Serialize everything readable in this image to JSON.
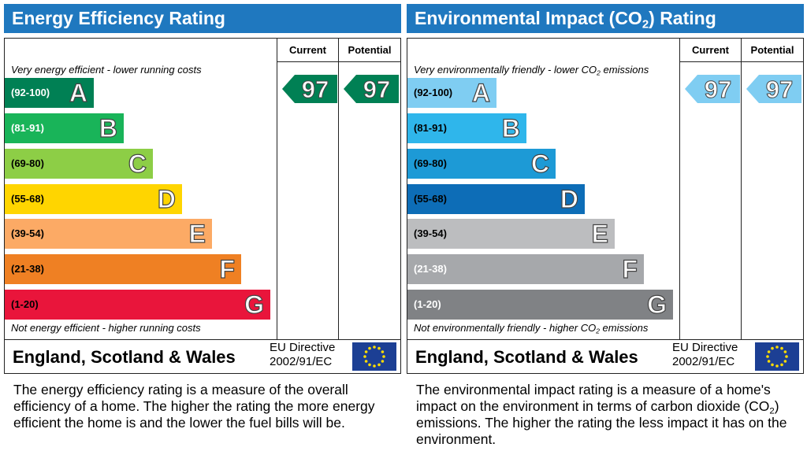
{
  "panels": [
    {
      "title": [
        "Energy Efficiency Rating"
      ],
      "columns": [
        "Current",
        "Potential"
      ],
      "top_note": [
        "Very energy efficient - lower running costs"
      ],
      "bands": [
        {
          "range": "(92-100)",
          "letter": "A"
        },
        {
          "range": "(81-91)",
          "letter": "B"
        },
        {
          "range": "(69-80)",
          "letter": "C"
        },
        {
          "range": "(55-68)",
          "letter": "D"
        },
        {
          "range": "(39-54)",
          "letter": "E"
        },
        {
          "range": "(21-38)",
          "letter": "F"
        },
        {
          "range": "(1-20)",
          "letter": "G"
        }
      ],
      "bottom_note": [
        "Not energy efficient - higher running costs"
      ],
      "current": 97,
      "potential": 97,
      "region": "England, Scotland & Wales",
      "directive": [
        "EU Directive",
        "2002/91/EC"
      ],
      "description": [
        "The energy efficiency rating is a measure of the overall efficiency of a home. The higher the rating the more energy efficient the home is and the lower the fuel bills will be."
      ]
    },
    {
      "title": [
        "Environmental Impact (CO",
        "2",
        ") Rating"
      ],
      "columns": [
        "Current",
        "Potential"
      ],
      "top_note": [
        "Very environmentally friendly - lower CO",
        "2",
        " emissions"
      ],
      "bands": [
        {
          "range": "(92-100)",
          "letter": "A"
        },
        {
          "range": "(81-91)",
          "letter": "B"
        },
        {
          "range": "(69-80)",
          "letter": "C"
        },
        {
          "range": "(55-68)",
          "letter": "D"
        },
        {
          "range": "(39-54)",
          "letter": "E"
        },
        {
          "range": "(21-38)",
          "letter": "F"
        },
        {
          "range": "(1-20)",
          "letter": "G"
        }
      ],
      "bottom_note": [
        "Not environmentally friendly - higher CO",
        "2",
        " emissions"
      ],
      "current": 97,
      "potential": 97,
      "region": "England, Scotland & Wales",
      "directive": [
        "EU Directive",
        "2002/91/EC"
      ],
      "description": [
        "The environmental impact rating is a measure of a home's impact on the environment in terms of carbon dioxide (CO",
        "2",
        ") emissions. The higher the rating the less impact it has on the environment."
      ]
    }
  ]
}
